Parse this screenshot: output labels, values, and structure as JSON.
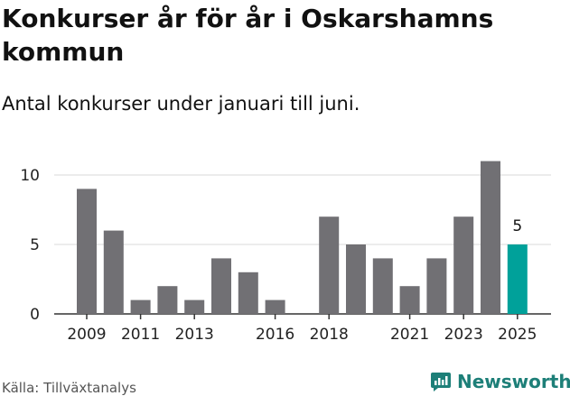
{
  "title": "Konkurser år för år i Oskarshamns kommun",
  "subtitle": "Antal konkurser under januari till juni.",
  "source": "Källa: Tillväxtanalys",
  "brand": {
    "name": "Newsworthy",
    "icon": "newsworthy-logo-icon",
    "color": "#1d7f78"
  },
  "colors": {
    "bar": "#717074",
    "highlight": "#00a19a",
    "grid": "#d9d9d9",
    "axis": "#333333"
  },
  "chart_data": {
    "type": "bar",
    "title": "Konkurser år för år i Oskarshamns kommun",
    "subtitle": "Antal konkurser under januari till juni.",
    "xlabel": "",
    "ylabel": "",
    "categories": [
      "2009",
      "2010",
      "2011",
      "2012",
      "2013",
      "2014",
      "2015",
      "2016",
      "2017",
      "2018",
      "2019",
      "2020",
      "2021",
      "2022",
      "2023",
      "2024",
      "2025"
    ],
    "values": [
      9,
      6,
      1,
      2,
      1,
      4,
      3,
      1,
      0,
      7,
      5,
      4,
      2,
      4,
      7,
      11,
      5
    ],
    "highlight_category": "2025",
    "data_labels": [
      {
        "category": "2025",
        "text": "5"
      }
    ],
    "x_tick_labels": [
      "2009",
      "2011",
      "2013",
      "2016",
      "2018",
      "2021",
      "2023",
      "2025"
    ],
    "y_ticks": [
      0,
      5,
      10
    ],
    "ylim": [
      0,
      11.5
    ],
    "grid": "horizontal"
  }
}
